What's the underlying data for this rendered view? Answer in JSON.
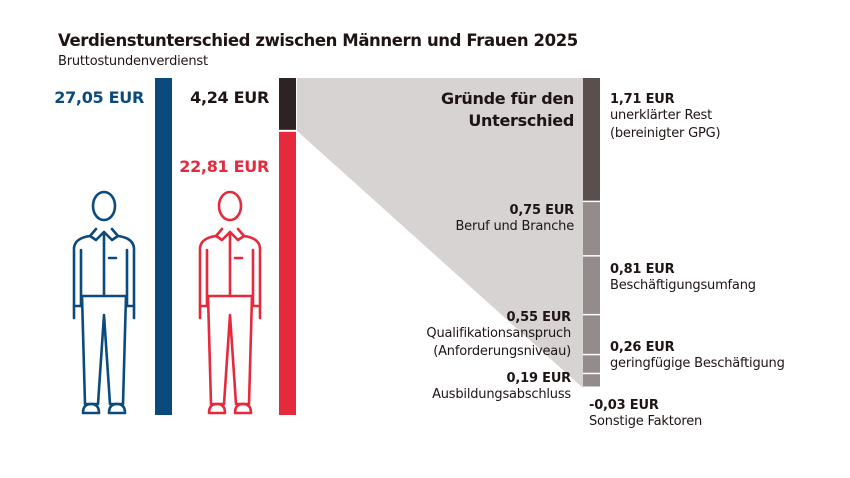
{
  "chart_data": {
    "type": "bar",
    "title": "Verdienstunterschied zwischen Männern und Frauen 2025",
    "subtitle": "Bruttostundenverdienst",
    "unit": "EUR",
    "men": {
      "value": 27.05,
      "label": "27,05 EUR",
      "color": "#0b4a7d"
    },
    "women": {
      "value": 22.81,
      "label": "22,81 EUR",
      "color": "#e42a3c"
    },
    "gap": {
      "value": 4.24,
      "label": "4,24 EUR",
      "color": "#2e2222"
    },
    "breakdown_title": "Gründe für den Unterschied",
    "breakdown": [
      {
        "value": 1.71,
        "label": "1,71 EUR",
        "name": "unerklärter Rest",
        "name2": "(bereinigter GPG)",
        "color": "#5b4f4e"
      },
      {
        "value": 0.75,
        "label": "0,75 EUR",
        "name": "Beruf und Branche",
        "color": "#948c8b"
      },
      {
        "value": 0.81,
        "label": "0,81 EUR",
        "name": "Beschäftigungsumfang",
        "color": "#948c8b"
      },
      {
        "value": 0.55,
        "label": "0,55 EUR",
        "name": "Qualifikationsanspruch",
        "name2": "(Anforderungsniveau)",
        "color": "#948c8b"
      },
      {
        "value": 0.26,
        "label": "0,26 EUR",
        "name": "geringfügige Beschäftigung",
        "color": "#948c8b"
      },
      {
        "value": 0.19,
        "label": "0,19 EUR",
        "name": "Ausbildungsabschluss",
        "color": "#948c8b"
      },
      {
        "value": -0.03,
        "label": "-0,03 EUR",
        "name": "Sonstige Faktoren",
        "color": "#948c8b"
      }
    ],
    "funnel_color": "#d6d3d2"
  }
}
